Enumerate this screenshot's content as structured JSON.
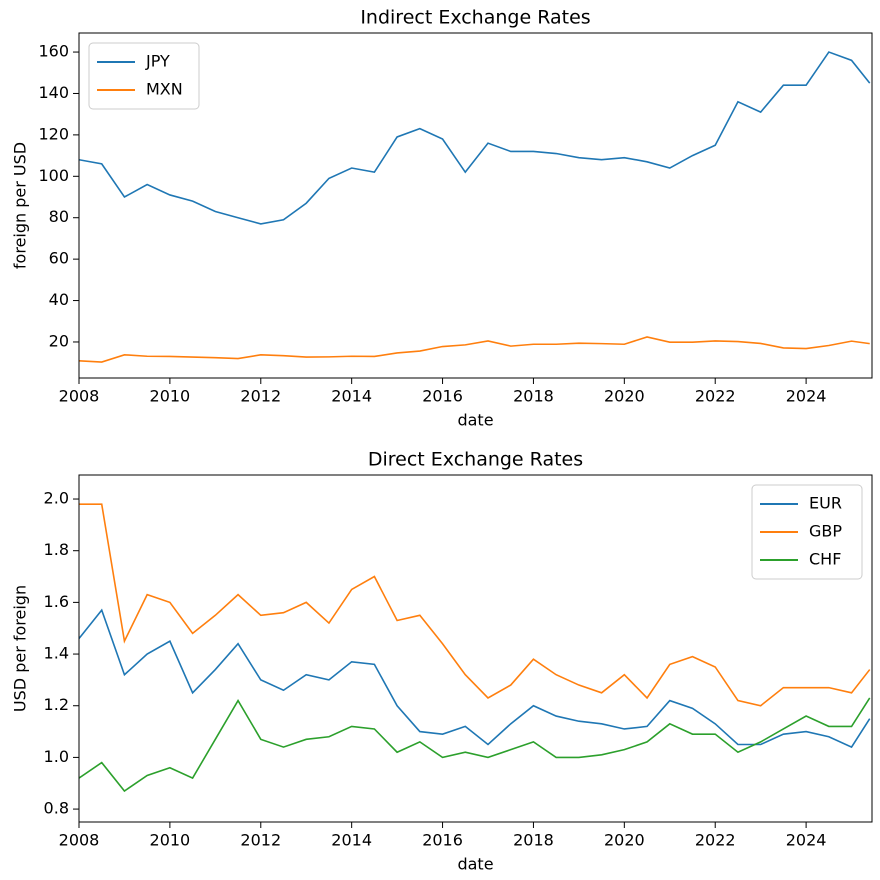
{
  "chart_data": [
    {
      "type": "line",
      "title": "Indirect Exchange Rates",
      "x_label": "date",
      "y_label": "foreign per USD",
      "x": [
        2008,
        2008.5,
        2009,
        2009.5,
        2010,
        2010.5,
        2011,
        2011.5,
        2012,
        2012.5,
        2013,
        2013.5,
        2014,
        2014.5,
        2015,
        2015.5,
        2016,
        2016.5,
        2017,
        2017.5,
        2018,
        2018.5,
        2019,
        2019.5,
        2020,
        2020.5,
        2021,
        2021.5,
        2022,
        2022.5,
        2023,
        2023.5,
        2024,
        2024.5,
        2025,
        2025.4
      ],
      "series": [
        {
          "name": "JPY",
          "color": "#1f77b4",
          "values": [
            108,
            106,
            90,
            96,
            91,
            88,
            83,
            80,
            77,
            79,
            87,
            99,
            104,
            102,
            119,
            123,
            118,
            102,
            116,
            112,
            112,
            111,
            109,
            108,
            109,
            107,
            104,
            110,
            115,
            136,
            131,
            144,
            144,
            160,
            156,
            145
          ]
        },
        {
          "name": "MXN",
          "color": "#ff7f0e",
          "values": [
            10.9,
            10.3,
            13.8,
            13.1,
            13.0,
            12.7,
            12.4,
            12.0,
            13.8,
            13.4,
            12.7,
            12.8,
            13.1,
            13.0,
            14.7,
            15.6,
            17.8,
            18.6,
            20.5,
            18.0,
            18.9,
            18.9,
            19.4,
            19.2,
            18.9,
            22.4,
            19.9,
            19.9,
            20.5,
            20.2,
            19.3,
            17.1,
            16.8,
            18.3,
            20.4,
            19.2
          ]
        }
      ],
      "xlim": [
        2008,
        2025.45
      ],
      "ylim": [
        2.6,
        169.2
      ],
      "xticks": [
        2008,
        2010,
        2012,
        2014,
        2016,
        2018,
        2020,
        2022,
        2024
      ],
      "yticks": [
        20,
        40,
        60,
        80,
        100,
        120,
        140,
        160
      ],
      "legend": "upper left"
    },
    {
      "type": "line",
      "title": "Direct Exchange Rates",
      "x_label": "date",
      "y_label": "USD per foreign",
      "x": [
        2008,
        2008.5,
        2009,
        2009.5,
        2010,
        2010.5,
        2011,
        2011.5,
        2012,
        2012.5,
        2013,
        2013.5,
        2014,
        2014.5,
        2015,
        2015.5,
        2016,
        2016.5,
        2017,
        2017.5,
        2018,
        2018.5,
        2019,
        2019.5,
        2020,
        2020.5,
        2021,
        2021.5,
        2022,
        2022.5,
        2023,
        2023.5,
        2024,
        2024.5,
        2025,
        2025.4
      ],
      "series": [
        {
          "name": "EUR",
          "color": "#1f77b4",
          "values": [
            1.46,
            1.57,
            1.32,
            1.4,
            1.45,
            1.25,
            1.34,
            1.44,
            1.3,
            1.26,
            1.32,
            1.3,
            1.37,
            1.36,
            1.2,
            1.1,
            1.09,
            1.12,
            1.05,
            1.13,
            1.2,
            1.16,
            1.14,
            1.13,
            1.11,
            1.12,
            1.22,
            1.19,
            1.13,
            1.05,
            1.05,
            1.09,
            1.1,
            1.08,
            1.04,
            1.15
          ]
        },
        {
          "name": "GBP",
          "color": "#ff7f0e",
          "values": [
            1.98,
            1.98,
            1.45,
            1.63,
            1.6,
            1.48,
            1.55,
            1.63,
            1.55,
            1.56,
            1.6,
            1.52,
            1.65,
            1.7,
            1.53,
            1.55,
            1.44,
            1.32,
            1.23,
            1.28,
            1.38,
            1.32,
            1.28,
            1.25,
            1.32,
            1.23,
            1.36,
            1.39,
            1.35,
            1.22,
            1.2,
            1.27,
            1.27,
            1.27,
            1.25,
            1.34
          ]
        },
        {
          "name": "CHF",
          "color": "#2ca02c",
          "values": [
            0.92,
            0.98,
            0.87,
            0.93,
            0.96,
            0.92,
            1.07,
            1.22,
            1.07,
            1.04,
            1.07,
            1.08,
            1.12,
            1.11,
            1.02,
            1.06,
            1.0,
            1.02,
            1.0,
            1.03,
            1.06,
            1.0,
            1.0,
            1.01,
            1.03,
            1.06,
            1.13,
            1.09,
            1.09,
            1.02,
            1.06,
            1.11,
            1.16,
            1.12,
            1.12,
            1.23
          ]
        }
      ],
      "xlim": [
        2008,
        2025.45
      ],
      "ylim": [
        0.75,
        2.093
      ],
      "xticks": [
        2008,
        2010,
        2012,
        2014,
        2016,
        2018,
        2020,
        2022,
        2024
      ],
      "yticks": [
        0.8,
        {
          "value": 1,
          "label": "1.0"
        },
        1.2,
        1.4,
        1.6,
        1.8,
        {
          "value": 2,
          "label": "2.0"
        }
      ],
      "legend": "upper right"
    }
  ]
}
